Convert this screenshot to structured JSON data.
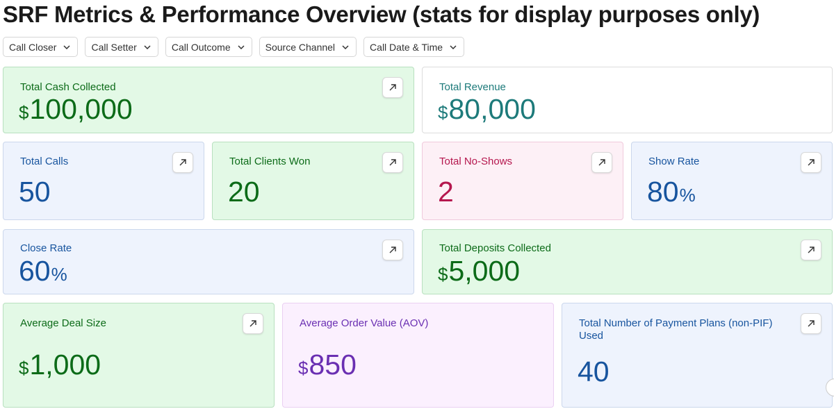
{
  "page": {
    "title": "SRF Metrics & Performance Overview (stats for display purposes only)"
  },
  "filters": [
    {
      "label": "Call Closer"
    },
    {
      "label": "Call Setter"
    },
    {
      "label": "Call Outcome"
    },
    {
      "label": "Source Channel"
    },
    {
      "label": "Call Date & Time"
    }
  ],
  "metrics": {
    "total_cash_collected": {
      "label": "Total Cash Collected",
      "prefix": "$",
      "value": "100,000"
    },
    "total_revenue": {
      "label": "Total Revenue",
      "prefix": "$",
      "value": "80,000"
    },
    "total_calls": {
      "label": "Total Calls",
      "value": "50"
    },
    "total_clients_won": {
      "label": "Total Clients Won",
      "value": "20"
    },
    "total_no_shows": {
      "label": "Total No-Shows",
      "value": "2"
    },
    "show_rate": {
      "label": "Show Rate",
      "value": "80",
      "suffix": "%"
    },
    "close_rate": {
      "label": "Close Rate",
      "value": "60",
      "suffix": "%"
    },
    "total_deposits_collected": {
      "label": "Total Deposits Collected",
      "prefix": "$",
      "value": "5,000"
    },
    "average_deal_size": {
      "label": "Average Deal Size",
      "prefix": "$",
      "value": "1,000"
    },
    "average_order_value": {
      "label": "Average Order Value (AOV)",
      "prefix": "$",
      "value": "850"
    },
    "total_payment_plans": {
      "label": "Total Number of Payment Plans (non-PIF) Used",
      "value": "40"
    }
  },
  "icons": {
    "open": "arrow-up-right-icon",
    "dropdown": "chevron-down-icon",
    "edge": "more-icon"
  },
  "colors": {
    "green_bg": "#e3f9e6",
    "green_text": "#0c6b18",
    "teal_text": "#1d7a7a",
    "blue_bg": "#eef3fd",
    "blue_text": "#17549e",
    "pink_bg": "#fdf0f6",
    "pink_text": "#b5174e",
    "purple_bg": "#fbf0fe",
    "purple_text": "#6a2fb2"
  }
}
